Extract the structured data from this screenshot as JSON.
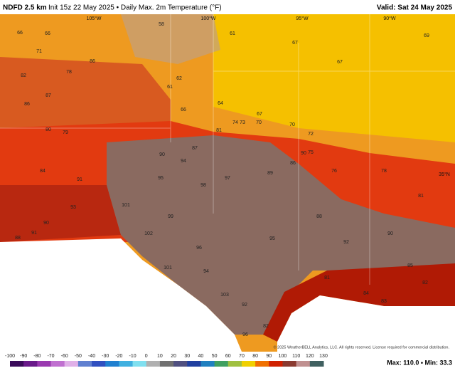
{
  "header": {
    "model": "NDFD 2.5 km",
    "title": "Init 15z 22 May 2025 • Daily Max. 2m Temperature (°F)",
    "valid": "Valid: Sat 24 May 2025"
  },
  "map": {
    "grid_labels": [
      "105°W",
      "100°W",
      "95°W",
      "90°W",
      "35°N"
    ],
    "temperatures": [
      66,
      71,
      66,
      82,
      87,
      86,
      78,
      80,
      79,
      84,
      91,
      93,
      90,
      101,
      102,
      101,
      99,
      98,
      97,
      95,
      94,
      90,
      87,
      81,
      74,
      73,
      70,
      67,
      64,
      66,
      61,
      62,
      58,
      61,
      67,
      69,
      67,
      70,
      72,
      75,
      76,
      78,
      81,
      88,
      92,
      95,
      96,
      94,
      103,
      92,
      81,
      84,
      82,
      83,
      82,
      96,
      86,
      88,
      91,
      90,
      86,
      89,
      90,
      85
    ]
  },
  "footer": {
    "copyright": "© 2025 WeatherBELL Analytics, LLC. All rights reserved. License required for commercial distribution.",
    "stats": "Max: 110.0 • Min: 33.3"
  },
  "colorbar": {
    "ticks": [
      -100,
      -90,
      -80,
      -70,
      -60,
      -50,
      -40,
      -30,
      -20,
      -10,
      0,
      10,
      20,
      30,
      40,
      50,
      60,
      70,
      80,
      90,
      100,
      110,
      120,
      130
    ],
    "colors": [
      "#3a0a5a",
      "#6a1a8a",
      "#9a3ab0",
      "#c070d0",
      "#e0b0e8",
      "#6080d0",
      "#3050c0",
      "#2080d0",
      "#40b0e0",
      "#80e0f0",
      "#b0b0b0",
      "#707070",
      "#505080",
      "#2040a0",
      "#2080c0",
      "#40a060",
      "#a0c040",
      "#f0d000",
      "#f07000",
      "#d02000",
      "#8a3a30",
      "#c09090",
      "#406060"
    ]
  }
}
